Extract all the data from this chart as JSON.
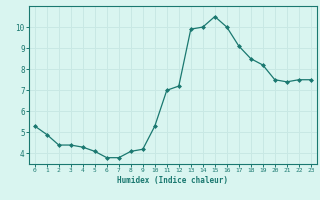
{
  "x": [
    0,
    1,
    2,
    3,
    4,
    5,
    6,
    7,
    8,
    9,
    10,
    11,
    12,
    13,
    14,
    15,
    16,
    17,
    18,
    19,
    20,
    21,
    22,
    23
  ],
  "y": [
    5.3,
    4.9,
    4.4,
    4.4,
    4.3,
    4.1,
    3.8,
    3.8,
    4.1,
    4.2,
    5.3,
    7.0,
    7.2,
    9.9,
    10.0,
    10.5,
    10.0,
    9.1,
    8.5,
    8.2,
    7.5,
    7.4,
    7.5,
    7.5
  ],
  "xlabel": "Humidex (Indice chaleur)",
  "line_color": "#1a7870",
  "marker_color": "#1a7870",
  "bg_color": "#d9f5f0",
  "grid_color": "#c8e8e4",
  "axis_color": "#1a7870",
  "tick_label_color": "#1a7870",
  "xlabel_color": "#1a7870",
  "ylim": [
    3.5,
    11.0
  ],
  "yticks": [
    4,
    5,
    6,
    7,
    8,
    9,
    10
  ],
  "xticks": [
    0,
    1,
    2,
    3,
    4,
    5,
    6,
    7,
    8,
    9,
    10,
    11,
    12,
    13,
    14,
    15,
    16,
    17,
    18,
    19,
    20,
    21,
    22,
    23
  ]
}
